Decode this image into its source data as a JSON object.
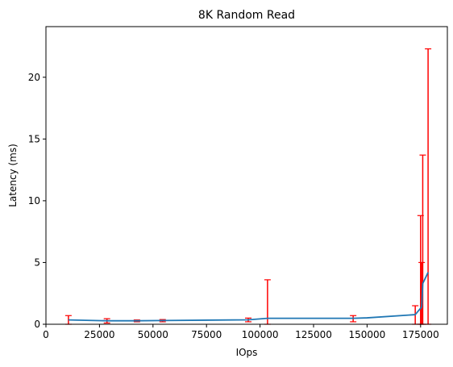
{
  "chart_data": {
    "type": "line",
    "title": "8K  Random Read",
    "xlabel": "IOps",
    "ylabel": "Latency (ms)",
    "xlim": [
      0,
      187500
    ],
    "ylim": [
      0,
      24.1
    ],
    "xticks": [
      0,
      25000,
      50000,
      75000,
      100000,
      125000,
      150000,
      175000
    ],
    "xtick_labels": [
      "0",
      "25000",
      "50000",
      "75000",
      "100000",
      "125000",
      "150000",
      "175000"
    ],
    "yticks": [
      0,
      5,
      10,
      15,
      20
    ],
    "ytick_labels": [
      "0",
      "5",
      "10",
      "15",
      "20"
    ],
    "grid": false,
    "series": [
      {
        "color": "#1f77b4",
        "x": [
          10500,
          28500,
          42500,
          54500,
          94500,
          103500,
          143500,
          150000,
          172500,
          175500,
          176000,
          178500
        ],
        "y": [
          0.35,
          0.28,
          0.28,
          0.3,
          0.36,
          0.48,
          0.48,
          0.52,
          0.78,
          1.4,
          3.3,
          4.2
        ]
      }
    ],
    "error_bars": {
      "color": "#ff0000",
      "x": [
        10500,
        28500,
        42500,
        54500,
        94500,
        103500,
        143500,
        172500,
        175500,
        176000,
        178500
      ],
      "lower": [
        0.0,
        0.1,
        0.2,
        0.2,
        0.2,
        0.0,
        0.2,
        0.0,
        0.0,
        0.0,
        0.0
      ],
      "upper": [
        0.7,
        0.45,
        0.35,
        0.38,
        0.5,
        3.6,
        0.7,
        1.5,
        5.0,
        13.7,
        22.3
      ]
    },
    "error_bars_extra": {
      "x": [
        175000
      ],
      "lower": [
        0.0
      ],
      "upper": [
        8.8
      ]
    }
  }
}
